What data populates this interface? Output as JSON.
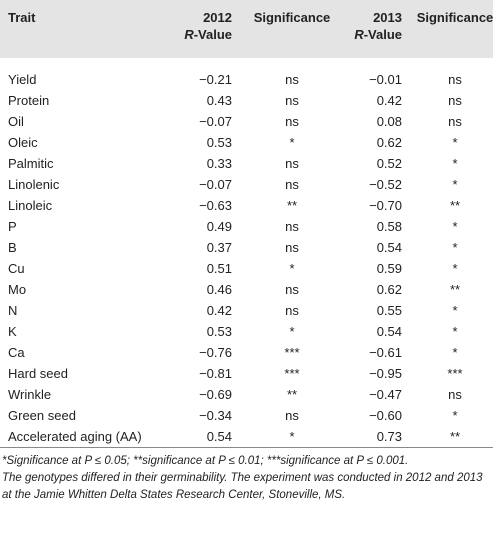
{
  "header": {
    "trait": "Trait",
    "col1": {
      "year": "2012",
      "r": "R",
      "suffix": "-Value"
    },
    "sig1": "Significance",
    "col2": {
      "year": "2013",
      "r": "R",
      "suffix": "-Value"
    },
    "sig2": "Significance"
  },
  "table": {
    "rows": [
      [
        "Yield",
        "−0.21",
        "ns",
        "−0.01",
        "ns"
      ],
      [
        "Protein",
        "0.43",
        "ns",
        "0.42",
        "ns"
      ],
      [
        "Oil",
        "−0.07",
        "ns",
        "0.08",
        "ns"
      ],
      [
        "Oleic",
        "0.53",
        "*",
        "0.62",
        "*"
      ],
      [
        "Palmitic",
        "0.33",
        "ns",
        "0.52",
        "*"
      ],
      [
        "Linolenic",
        "−0.07",
        "ns",
        "−0.52",
        "*"
      ],
      [
        "Linoleic",
        "−0.63",
        "**",
        "−0.70",
        "**"
      ],
      [
        "P",
        "0.49",
        "ns",
        "0.58",
        "*"
      ],
      [
        "B",
        "0.37",
        "ns",
        "0.54",
        "*"
      ],
      [
        "Cu",
        "0.51",
        "*",
        "0.59",
        "*"
      ],
      [
        "Mo",
        "0.46",
        "ns",
        "0.62",
        "**"
      ],
      [
        "N",
        "0.42",
        "ns",
        "0.55",
        "*"
      ],
      [
        "K",
        "0.53",
        "*",
        "0.54",
        "*"
      ],
      [
        "Ca",
        "−0.76",
        "***",
        "−0.61",
        "*"
      ],
      [
        "Hard seed",
        "−0.81",
        "***",
        "−0.95",
        "***"
      ],
      [
        "Wrinkle",
        "−0.69",
        "**",
        "−0.47",
        "ns"
      ],
      [
        "Green seed",
        "−0.34",
        "ns",
        "−0.60",
        "*"
      ],
      [
        "Accelerated aging (AA)",
        "0.54",
        "*",
        "0.73",
        "**"
      ]
    ]
  },
  "footnote": {
    "line1": "*Significance at P ≤ 0.05; **significance at P ≤ 0.01; ***significance at P ≤ 0.001.",
    "line2": "The genotypes differed in their germinability. The experiment was conducted in 2012 and 2013 at the Jamie Whitten Delta States Research Center, Stoneville, MS."
  }
}
